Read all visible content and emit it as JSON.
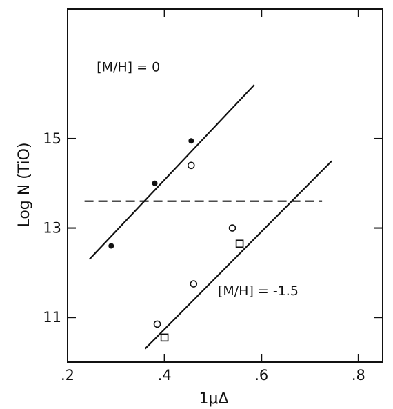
{
  "chart_data": {
    "type": "scatter",
    "xlabel": "1μΔ",
    "ylabel": "Log N (TiO)",
    "xlim": [
      0.2,
      0.85
    ],
    "ylim": [
      10.0,
      17.9
    ],
    "xticks": [
      0.2,
      0.4,
      0.6,
      0.8
    ],
    "xtick_labels": [
      ".2",
      ".4",
      ".6",
      ".8"
    ],
    "yticks": [
      11,
      13,
      15
    ],
    "ytick_labels": [
      "11",
      "13",
      "15"
    ],
    "grid": false,
    "annotations": [
      {
        "text": "[M/H] = 0",
        "x": 0.26,
        "y": 16.5
      },
      {
        "text": "[M/H] = -1.5",
        "x": 0.51,
        "y": 11.5
      }
    ],
    "series": [
      {
        "marker": "filled-circle",
        "x": [
          0.29,
          0.38,
          0.455
        ],
        "y": [
          12.6,
          14.0,
          14.95
        ]
      },
      {
        "marker": "open-circle",
        "x": [
          0.455,
          0.54,
          0.46,
          0.385
        ],
        "y": [
          14.4,
          13.0,
          11.75,
          10.85
        ]
      },
      {
        "marker": "open-square",
        "x": [
          0.555,
          0.4
        ],
        "y": [
          12.65,
          10.55
        ]
      }
    ],
    "lines": [
      {
        "style": "solid",
        "x": [
          0.245,
          0.585
        ],
        "y": [
          12.3,
          16.2
        ]
      },
      {
        "style": "solid",
        "x": [
          0.36,
          0.745
        ],
        "y": [
          10.3,
          14.5
        ]
      },
      {
        "style": "dashed",
        "x": [
          0.235,
          0.725
        ],
        "y": [
          13.6,
          13.6
        ]
      }
    ],
    "colors": {
      "ink": "#111111"
    }
  }
}
